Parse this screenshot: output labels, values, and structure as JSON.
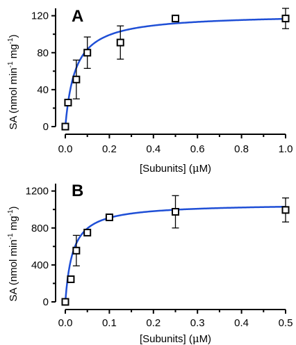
{
  "chart_data": [
    {
      "type": "scatter",
      "panel_label": "A",
      "xlabel_parts": [
        "[Subunits] (",
        "μ",
        "M)"
      ],
      "ylabel_parts": [
        "SA (nmol min",
        "-1",
        " mg",
        "-1",
        ")"
      ],
      "xlim": [
        0,
        1.0
      ],
      "ylim": [
        0,
        128
      ],
      "x_ticks": [
        "0.0",
        "0.2",
        "0.4",
        "0.6",
        "0.8",
        "1.0"
      ],
      "x_tick_values": [
        0,
        0.2,
        0.4,
        0.6,
        0.8,
        1.0
      ],
      "y_ticks": [
        "0",
        "40",
        "80",
        "120"
      ],
      "y_tick_values": [
        0,
        40,
        80,
        120
      ],
      "y_minor_tick_values": [
        20,
        60,
        100
      ],
      "points": [
        {
          "x": 0.0,
          "y": 0,
          "err": 0
        },
        {
          "x": 0.0125,
          "y": 26,
          "err": 0
        },
        {
          "x": 0.05,
          "y": 51,
          "err": 21
        },
        {
          "x": 0.1,
          "y": 80,
          "err": 17
        },
        {
          "x": 0.25,
          "y": 91,
          "err": 18
        },
        {
          "x": 0.5,
          "y": 117,
          "err": 0
        },
        {
          "x": 1.0,
          "y": 117,
          "err": 11
        }
      ],
      "fit": {
        "model": "hyperbolic",
        "vmax": 122,
        "k": 0.046,
        "color": "#1f4fd6"
      },
      "grid": false,
      "legend": "none"
    },
    {
      "type": "scatter",
      "panel_label": "B",
      "xlabel_parts": [
        "[Subunits] (",
        "μ",
        "M)"
      ],
      "ylabel_parts": [
        "SA (nmol min",
        "-1",
        " mg",
        "-1",
        ")"
      ],
      "xlim": [
        0,
        0.5
      ],
      "ylim": [
        0,
        1280
      ],
      "x_ticks": [
        "0.0",
        "0.1",
        "0.2",
        "0.3",
        "0.4",
        "0.5"
      ],
      "x_tick_values": [
        0,
        0.1,
        0.2,
        0.3,
        0.4,
        0.5
      ],
      "y_ticks": [
        "0",
        "400",
        "800",
        "1200"
      ],
      "y_tick_values": [
        0,
        400,
        800,
        1200
      ],
      "y_minor_tick_values": [
        200,
        600,
        1000
      ],
      "points": [
        {
          "x": 0.0,
          "y": 0,
          "err": 0
        },
        {
          "x": 0.0125,
          "y": 245,
          "err": 0
        },
        {
          "x": 0.025,
          "y": 555,
          "err": 165
        },
        {
          "x": 0.05,
          "y": 750,
          "err": 0
        },
        {
          "x": 0.1,
          "y": 915,
          "err": 0
        },
        {
          "x": 0.25,
          "y": 975,
          "err": 175
        },
        {
          "x": 0.5,
          "y": 995,
          "err": 130
        }
      ],
      "fit": {
        "model": "hyperbolic",
        "vmax": 1065,
        "k": 0.017,
        "color": "#1f4fd6"
      },
      "grid": false,
      "legend": "none"
    }
  ]
}
